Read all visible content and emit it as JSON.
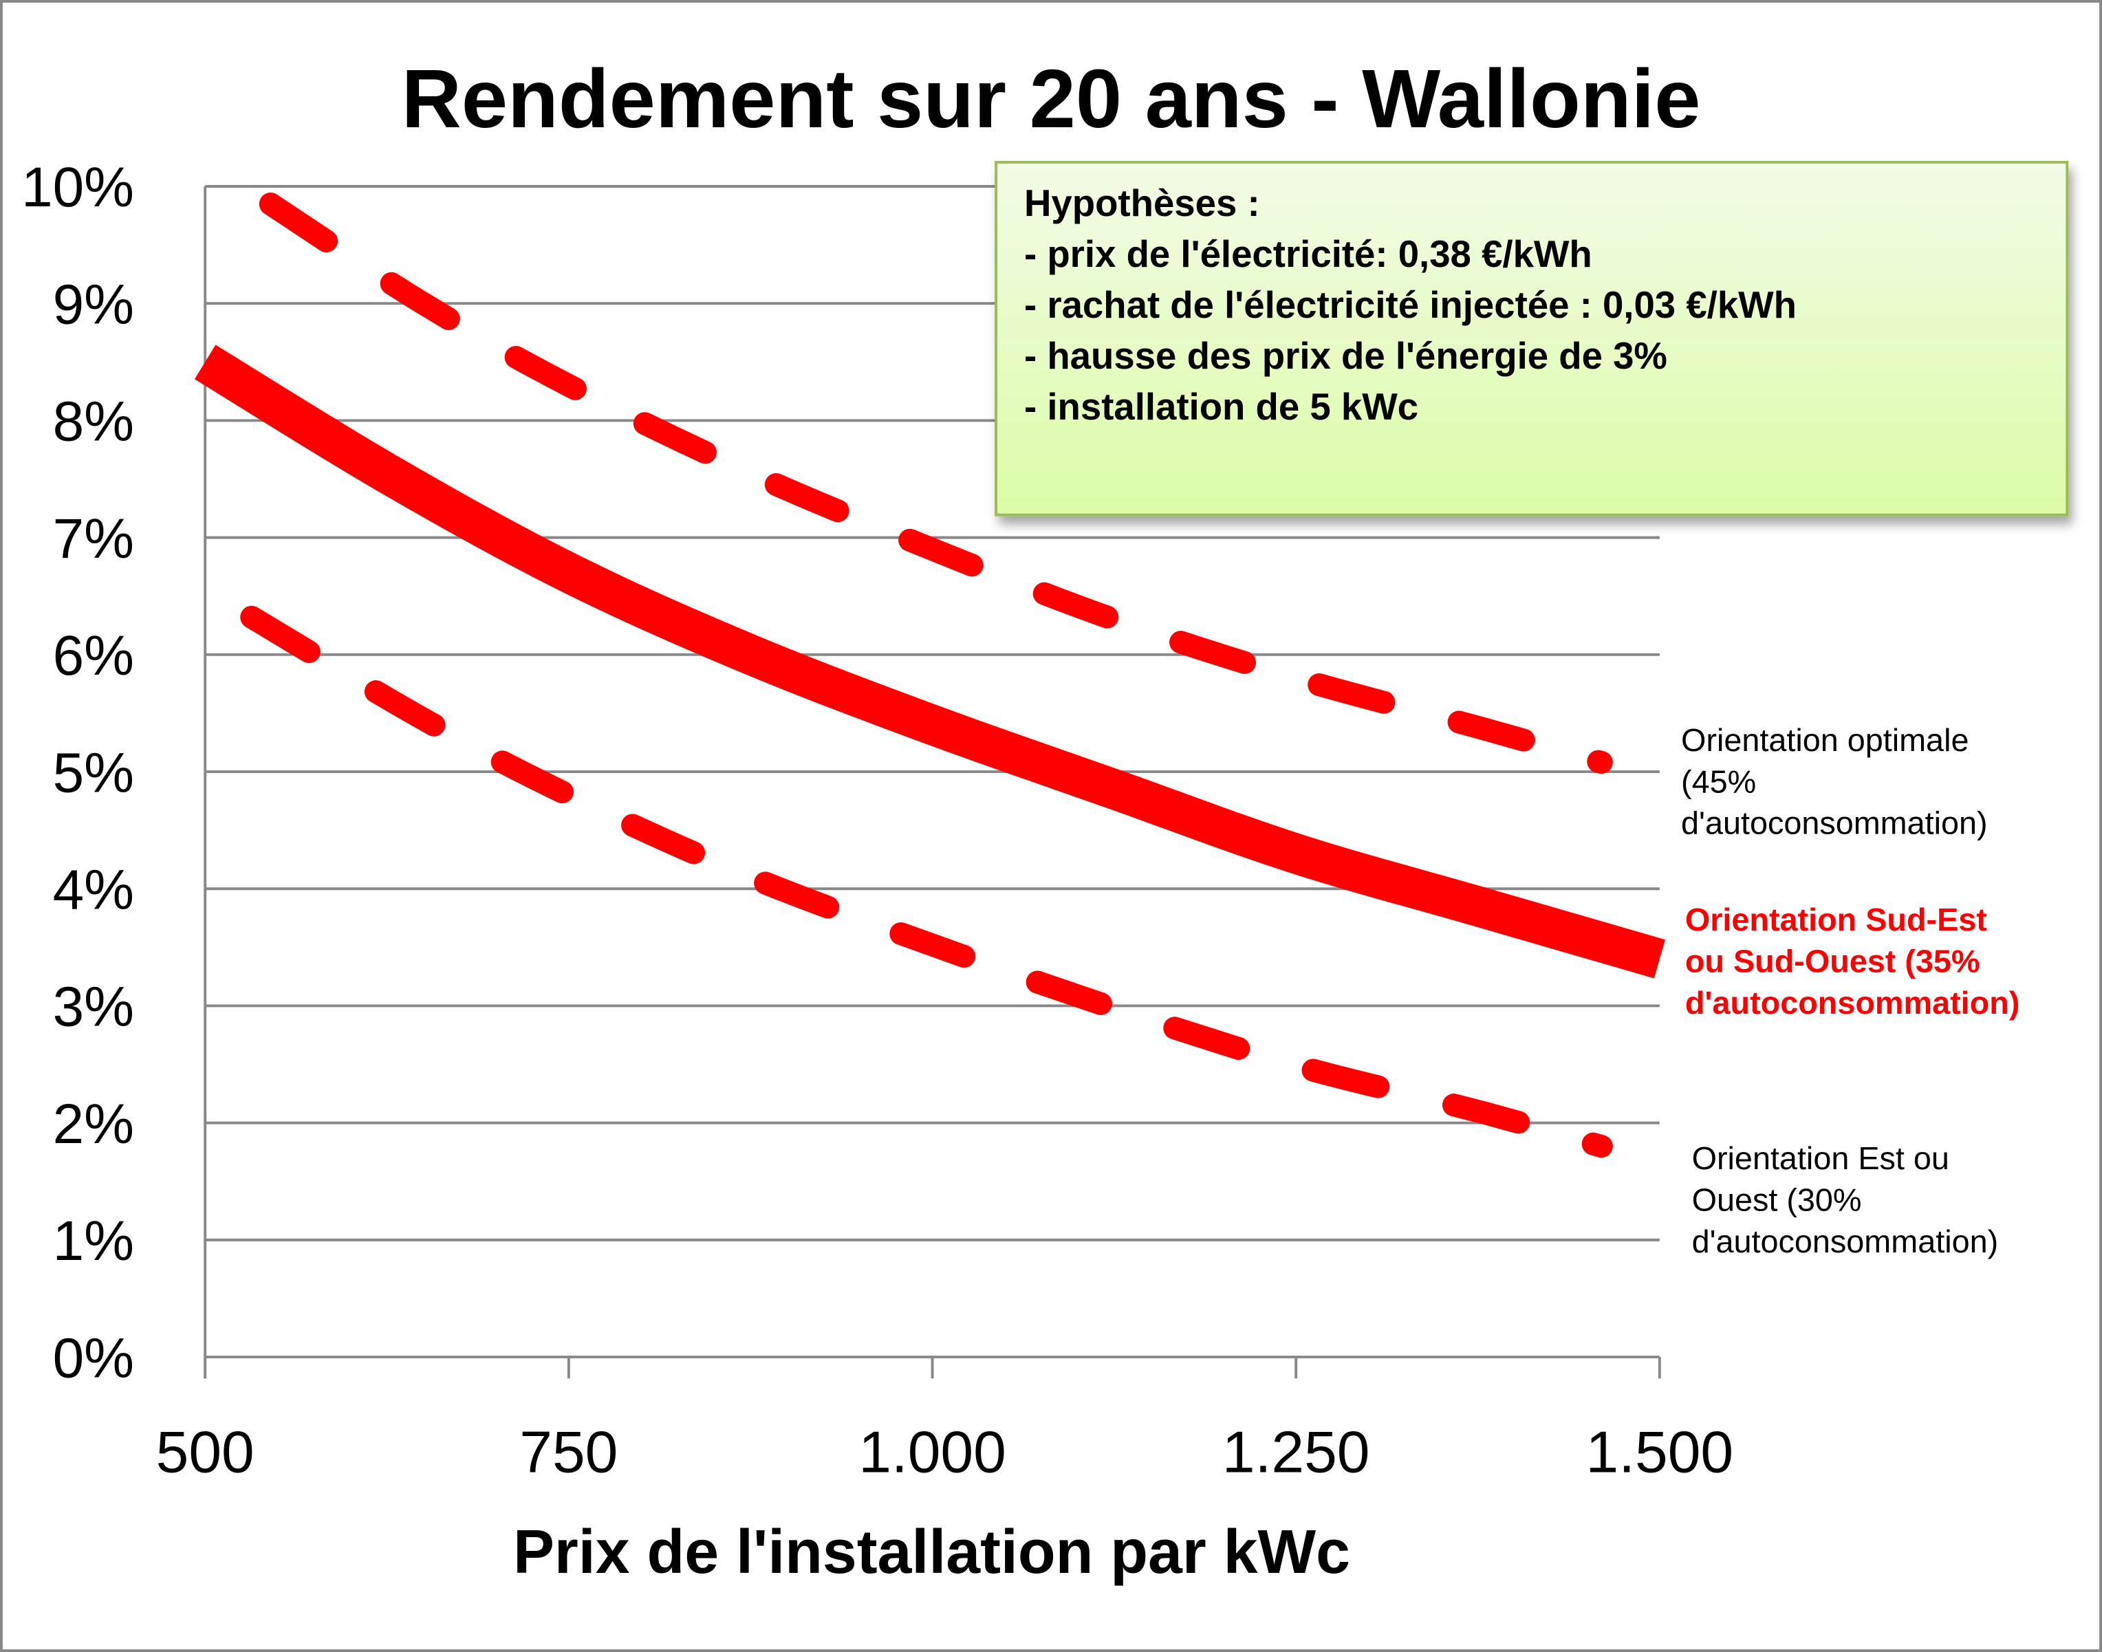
{
  "chart_data": {
    "type": "line",
    "title": "Rendement sur 20 ans - Wallonie",
    "xlabel": "Prix de l'installation par kWc",
    "ylabel": "",
    "xlim": [
      500,
      1500
    ],
    "ylim": [
      0,
      10
    ],
    "x_ticks": [
      "500",
      "750",
      "1.000",
      "1.250",
      "1.500"
    ],
    "x_tick_values": [
      500,
      750,
      1000,
      1250,
      1500
    ],
    "y_ticks": [
      "0%",
      "1%",
      "2%",
      "3%",
      "4%",
      "5%",
      "6%",
      "7%",
      "8%",
      "9%",
      "10%"
    ],
    "y_tick_values": [
      0,
      1,
      2,
      3,
      4,
      5,
      6,
      7,
      8,
      9,
      10
    ],
    "grid": "horizontal",
    "series": [
      {
        "name": "Orientation optimale (45% d'autoconsommation)",
        "label_lines": [
          "Orientation  optimale",
          "(45%",
          "d'autoconsommation)"
        ],
        "style": "dashed",
        "color": "#ff0000",
        "label_color": "#000000",
        "x": [
          545,
          650,
          750,
          875,
          1000,
          1125,
          1250,
          1375,
          1460
        ],
        "y": [
          9.85,
          9.0,
          8.3,
          7.55,
          6.9,
          6.3,
          5.8,
          5.38,
          5.08
        ]
      },
      {
        "name": "Orientation Sud-Est ou Sud-Ouest (35% d'autoconsommation)",
        "label_lines": [
          "Orientation Sud-Est",
          "ou Sud-Ouest (35%",
          "d'autoconsommation)"
        ],
        "style": "solid",
        "color": "#ff0000",
        "label_color": "#ff0000",
        "x": [
          500,
          625,
          750,
          875,
          1000,
          1125,
          1250,
          1375,
          1500
        ],
        "y": [
          8.5,
          7.55,
          6.7,
          6.0,
          5.4,
          4.85,
          4.3,
          3.85,
          3.4
        ]
      },
      {
        "name": "Orientation Est ou Ouest (30% d'autoconsommation)",
        "label_lines": [
          "Orientation  Est ou",
          "Ouest (30%",
          "d'autoconsommation)"
        ],
        "style": "dashed",
        "color": "#ff0000",
        "label_color": "#000000",
        "x": [
          532,
          650,
          750,
          875,
          1000,
          1125,
          1250,
          1375,
          1460
        ],
        "y": [
          6.32,
          5.45,
          4.8,
          4.1,
          3.52,
          2.98,
          2.49,
          2.1,
          1.8
        ]
      }
    ],
    "annotation": {
      "lines": [
        "Hypothèses :",
        "- prix de l'électricité: 0,38 €/kWh",
        "- rachat de l'électricité injectée : 0,03 €/kWh",
        "- hausse des prix de l'énergie de 3%",
        "- installation de 5 kWc"
      ],
      "fill_top": "#f2fbe6",
      "fill_bottom": "#dcfca8",
      "border": "#9bbb59"
    }
  }
}
